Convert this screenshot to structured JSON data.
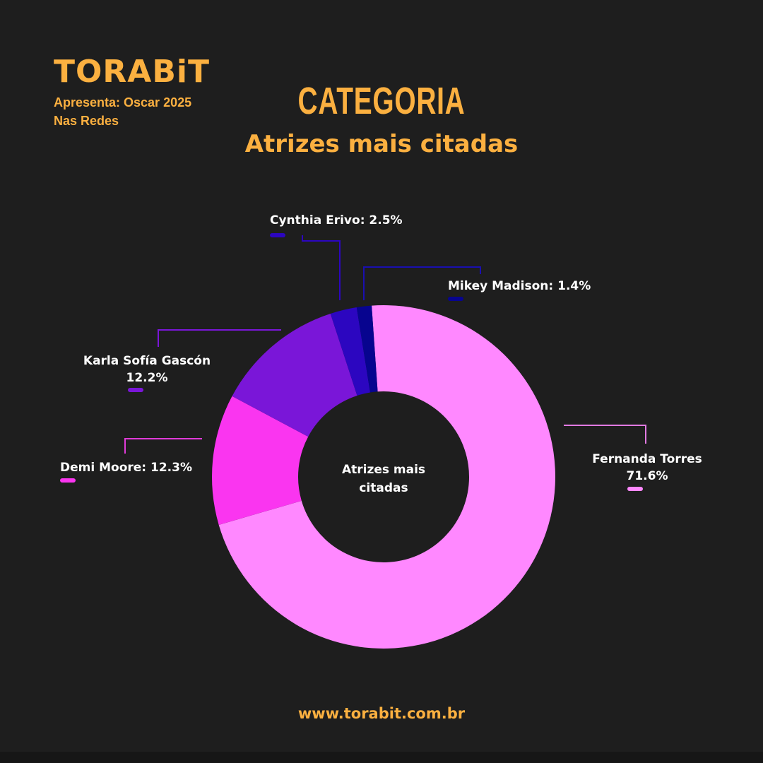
{
  "header": {
    "logo": "TORABiT",
    "subtitle": "Apresenta: Oscar 2025 Nas Redes",
    "category": "CATEGORIA",
    "title": "Atrizes mais citadas"
  },
  "footer": {
    "url": "www.torabit.com.br"
  },
  "colors": {
    "accent": "#fbb040",
    "background": "#1e1e1e"
  },
  "chart_data": {
    "type": "pie",
    "variant": "donut",
    "title": "Atrizes mais citadas",
    "center_label": "Atrizes mais citadas",
    "categories": [
      "Fernanda Torres",
      "Demi Moore",
      "Karla Sofía Gascón",
      "Cynthia Erivo",
      "Mikey Madison"
    ],
    "values": [
      71.6,
      12.3,
      12.2,
      2.5,
      1.4
    ],
    "unit": "%",
    "colors": [
      "#ff88ff",
      "#fa35f0",
      "#7a16d8",
      "#2c06c0",
      "#07048f"
    ],
    "labels": [
      {
        "name": "Fernanda Torres",
        "value": "71.6%"
      },
      {
        "name": "Demi Moore",
        "value": "12.3%"
      },
      {
        "name": "Karla Sofía Gascón",
        "value": "12.2%"
      },
      {
        "name": "Cynthia Erivo",
        "value": "2.5%"
      },
      {
        "name": "Mikey Madison",
        "value": "1.4%"
      }
    ]
  }
}
